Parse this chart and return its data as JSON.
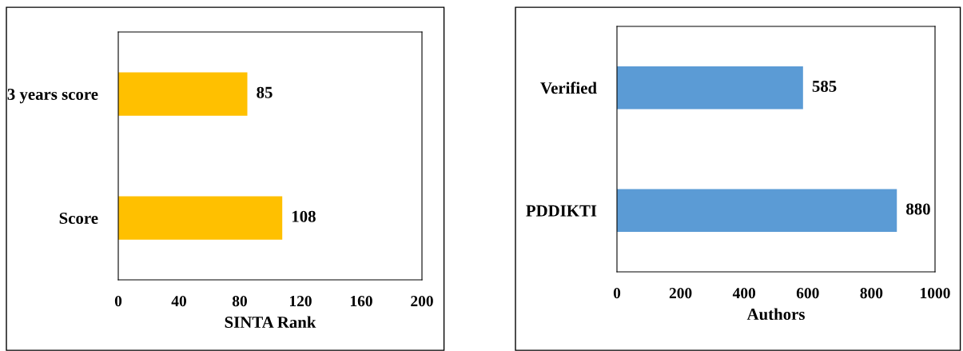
{
  "chart_data": [
    {
      "type": "bar",
      "orientation": "horizontal",
      "categories": [
        "3 years score",
        "Score"
      ],
      "values": [
        85,
        108
      ],
      "color": "#ffc000",
      "xlabel": "SINTA Rank",
      "xlim": [
        0,
        200
      ],
      "xticks": [
        0,
        40,
        80,
        120,
        160,
        200
      ],
      "data_labels": true,
      "grid": false,
      "legend": false
    },
    {
      "type": "bar",
      "orientation": "horizontal",
      "categories": [
        "Verified",
        "PDDIKTI"
      ],
      "values": [
        585,
        880
      ],
      "color": "#5b9bd5",
      "xlabel": "Authors",
      "xlim": [
        0,
        1000
      ],
      "xticks": [
        0,
        200,
        400,
        600,
        800,
        1000
      ],
      "data_labels": true,
      "grid": false,
      "legend": false
    }
  ]
}
